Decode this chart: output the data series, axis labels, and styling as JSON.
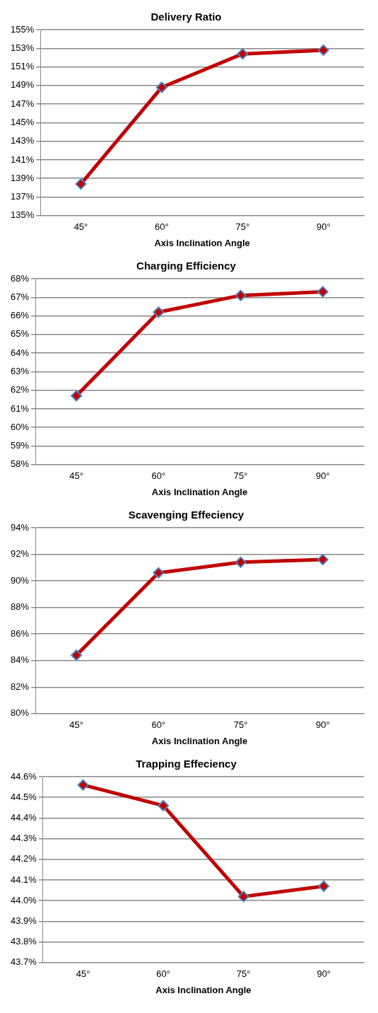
{
  "chart_data": [
    {
      "type": "line",
      "title": "Delivery Ratio",
      "xlabel": "Axis Inclination Angle",
      "categories": [
        "45°",
        "60°",
        "75°",
        "90°"
      ],
      "series": [
        {
          "color": "#c00000",
          "values": [
            138.4,
            148.8,
            152.4,
            152.8
          ]
        }
      ],
      "ylim": [
        135,
        155
      ],
      "yticks": [
        {
          "value": 135,
          "label": "135%"
        },
        {
          "value": 137,
          "label": "137%"
        },
        {
          "value": 139,
          "label": "139%"
        },
        {
          "value": 141,
          "label": "141%"
        },
        {
          "value": 143,
          "label": "143%"
        },
        {
          "value": 145,
          "label": "145%"
        },
        {
          "value": 147,
          "label": "147%"
        },
        {
          "value": 149,
          "label": "149%"
        },
        {
          "value": 151,
          "label": "151%"
        },
        {
          "value": 153,
          "label": "153%"
        },
        {
          "value": 155,
          "label": "155%"
        }
      ],
      "grid": "y",
      "marker": "diamond"
    },
    {
      "type": "line",
      "title": "Charging Efficiency",
      "xlabel": "Axis Inclination Angle",
      "categories": [
        "45°",
        "60°",
        "75°",
        "90°"
      ],
      "series": [
        {
          "color": "#c00000",
          "values": [
            61.7,
            66.2,
            67.1,
            67.3
          ]
        }
      ],
      "ylim": [
        58,
        68
      ],
      "yticks": [
        {
          "value": 58,
          "label": "58%"
        },
        {
          "value": 59,
          "label": "59%"
        },
        {
          "value": 60,
          "label": "60%"
        },
        {
          "value": 61,
          "label": "61%"
        },
        {
          "value": 62,
          "label": "62%"
        },
        {
          "value": 63,
          "label": "63%"
        },
        {
          "value": 64,
          "label": "64%"
        },
        {
          "value": 65,
          "label": "65%"
        },
        {
          "value": 66,
          "label": "66%"
        },
        {
          "value": 67,
          "label": "67%"
        },
        {
          "value": 68,
          "label": "68%"
        }
      ],
      "grid": "y",
      "marker": "diamond"
    },
    {
      "type": "line",
      "title": "Scavenging Effeciency",
      "xlabel": "Axis Inclination Angle",
      "categories": [
        "45°",
        "60°",
        "75°",
        "90°"
      ],
      "series": [
        {
          "color": "#c00000",
          "values": [
            84.4,
            90.6,
            91.4,
            91.6
          ]
        }
      ],
      "ylim": [
        80,
        94
      ],
      "yticks": [
        {
          "value": 80,
          "label": "80%"
        },
        {
          "value": 82,
          "label": "82%"
        },
        {
          "value": 84,
          "label": "84%"
        },
        {
          "value": 86,
          "label": "86%"
        },
        {
          "value": 88,
          "label": "88%"
        },
        {
          "value": 90,
          "label": "90%"
        },
        {
          "value": 92,
          "label": "92%"
        },
        {
          "value": 94,
          "label": "94%"
        }
      ],
      "grid": "y",
      "marker": "diamond"
    },
    {
      "type": "line",
      "title": "Trapping Effeciency",
      "xlabel": "Axis Inclination Angle",
      "categories": [
        "45°",
        "60°",
        "75°",
        "90°"
      ],
      "series": [
        {
          "color": "#c00000",
          "values": [
            44.56,
            44.46,
            44.02,
            44.07
          ]
        }
      ],
      "ylim": [
        43.7,
        44.6
      ],
      "yticks": [
        {
          "value": 43.7,
          "label": "43.7%"
        },
        {
          "value": 43.8,
          "label": "43.8%"
        },
        {
          "value": 43.9,
          "label": "43.9%"
        },
        {
          "value": 44.0,
          "label": "44.0%"
        },
        {
          "value": 44.1,
          "label": "44.1%"
        },
        {
          "value": 44.2,
          "label": "44.2%"
        },
        {
          "value": 44.3,
          "label": "44.3%"
        },
        {
          "value": 44.4,
          "label": "44.4%"
        },
        {
          "value": 44.5,
          "label": "44.5%"
        },
        {
          "value": 44.6,
          "label": "44.6%"
        }
      ],
      "grid": "y",
      "marker": "diamond"
    }
  ]
}
